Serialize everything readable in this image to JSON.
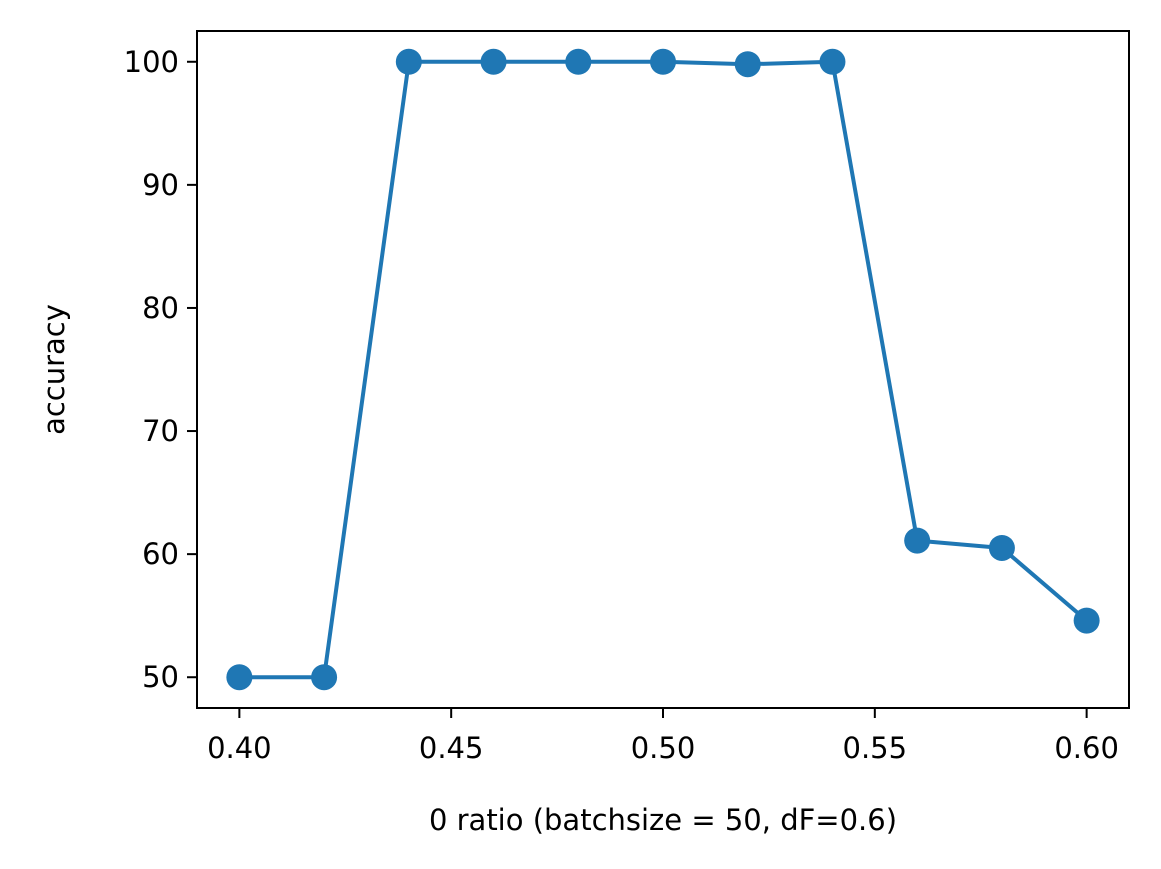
{
  "chart_data": {
    "type": "line",
    "title": "",
    "xlabel": "0 ratio (batchsize = 50, dF=0.6)",
    "ylabel": "accuracy",
    "xlim": [
      0.39,
      0.61
    ],
    "ylim": [
      47.5,
      102.5
    ],
    "x_ticks": [
      0.4,
      0.45,
      0.5,
      0.55,
      0.6
    ],
    "x_tick_labels": [
      "0.40",
      "0.45",
      "0.50",
      "0.55",
      "0.60"
    ],
    "y_ticks": [
      50,
      60,
      70,
      80,
      90,
      100
    ],
    "y_tick_labels": [
      "50",
      "60",
      "70",
      "80",
      "90",
      "100"
    ],
    "grid": false,
    "legend": false,
    "series": [
      {
        "color": "#1f77b4",
        "marker": "circle",
        "x": [
          0.4,
          0.42,
          0.44,
          0.46,
          0.48,
          0.5,
          0.52,
          0.54,
          0.56,
          0.58,
          0.6
        ],
        "y": [
          50.0,
          50.0,
          100.0,
          100.0,
          100.0,
          100.0,
          99.8,
          100.0,
          61.1,
          60.5,
          54.6
        ]
      }
    ]
  }
}
